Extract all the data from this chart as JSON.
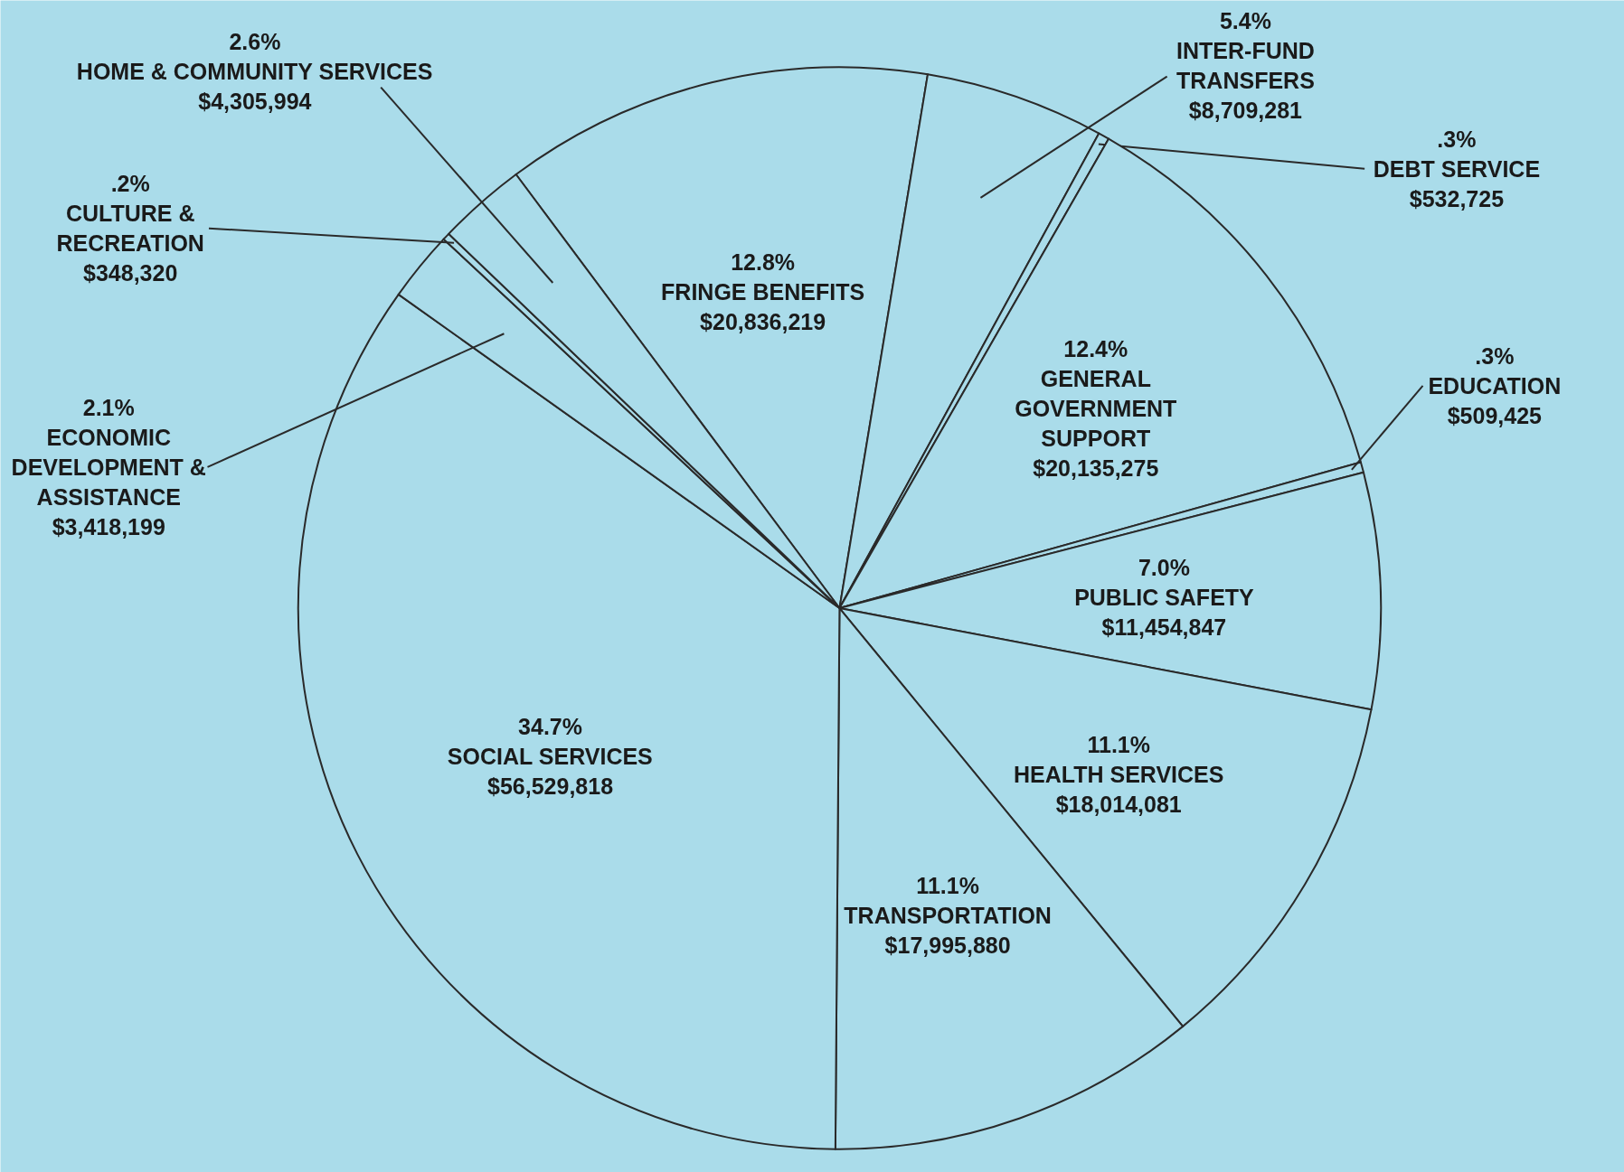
{
  "chart_data": {
    "type": "pie",
    "categories": [
      "FRINGE BENEFITS",
      "INTER-FUND TRANSFERS",
      "DEBT SERVICE",
      "GENERAL GOVERNMENT SUPPORT",
      "EDUCATION",
      "PUBLIC SAFETY",
      "HEALTH SERVICES",
      "TRANSPORTATION",
      "SOCIAL SERVICES",
      "ECONOMIC DEVELOPMENT & ASSISTANCE",
      "CULTURE & RECREATION",
      "HOME & COMMUNITY SERVICES"
    ],
    "values": [
      20836219,
      8709281,
      532725,
      20135275,
      509425,
      11454847,
      18014081,
      17995880,
      56529818,
      3418199,
      348320,
      4305994
    ],
    "value_labels": [
      "$20,836,219",
      "$8,709,281",
      "$532,725",
      "$20,135,275",
      "$509,425",
      "$11,454,847",
      "$18,014,081",
      "$17,995,880",
      "$56,529,818",
      "$3,418,199",
      "$348,320",
      "$4,305,994"
    ],
    "colors": [
      "#aadcea",
      "#aadcea",
      "#aadcea",
      "#aadcea",
      "#aadcea",
      "#aadcea",
      "#aadcea",
      "#aadcea",
      "#aadcea",
      "#aadcea",
      "#aadcea",
      "#aadcea"
    ],
    "annotations": [
      {
        "text": "12.8%",
        "x": "FRINGE BENEFITS"
      },
      {
        "text": "5.4%",
        "x": "INTER-FUND TRANSFERS"
      },
      {
        "text": ".3%",
        "x": "DEBT SERVICE"
      },
      {
        "text": "12.4%",
        "x": "GENERAL GOVERNMENT SUPPORT"
      },
      {
        "text": ".3%",
        "x": "EDUCATION"
      },
      {
        "text": "7.0%",
        "x": "PUBLIC SAFETY"
      },
      {
        "text": "11.1%",
        "x": "HEALTH SERVICES"
      },
      {
        "text": "11.1%",
        "x": "TRANSPORTATION"
      },
      {
        "text": "34.7%",
        "x": "SOCIAL SERVICES"
      },
      {
        "text": "2.1%",
        "x": "ECONOMIC DEVELOPMENT & ASSISTANCE"
      },
      {
        "text": ".2%",
        "x": "CULTURE & RECREATION"
      },
      {
        "text": "2.6%",
        "x": "HOME & COMMUNITY SERVICES"
      }
    ]
  }
}
